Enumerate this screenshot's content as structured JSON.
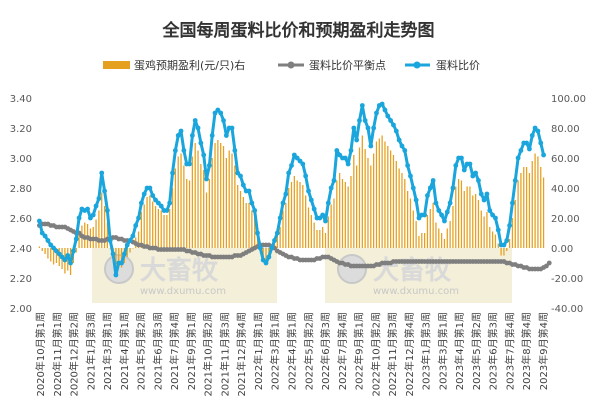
{
  "chart_data": {
    "type": "bar+line",
    "title": "全国每周蛋料比价和预期盈利走势图",
    "legend_position": "top",
    "colors": {
      "profit": "#E6A020",
      "breakeven": "#7F7F7F",
      "ratio": "#1AA5DC",
      "watermark": "#EFEACB"
    },
    "legend": {
      "profit": "蛋鸡预期盈利(元/只)右",
      "breakeven": "蛋料比价平衡点",
      "ratio": "蛋料比价"
    },
    "watermark": {
      "name": "大畜牧",
      "url": "www.dxumu.com"
    },
    "y_left": {
      "min": 2.0,
      "max": 3.4,
      "ticks": [
        "2.00",
        "2.20",
        "2.40",
        "2.60",
        "2.80",
        "3.00",
        "3.20",
        "3.40"
      ]
    },
    "y_right": {
      "min": -40,
      "max": 100,
      "ticks": [
        "-40.00",
        "-20.00",
        "0.00",
        "20.00",
        "40.00",
        "60.00",
        "80.00",
        "100.00"
      ]
    },
    "x_labels": [
      "2020年10月第1周",
      "2020年11月第1周",
      "2020年12月第2周",
      "2021年1月第3周",
      "2021年3月第1周",
      "2021年4月第1周",
      "2021年5月第2周",
      "2021年6月第3周",
      "2021年7月第4周",
      "2021年9月第1周",
      "2021年10月第2周",
      "2021年11月第3周",
      "2021年12月第4周",
      "2022年1月第1周",
      "2022年3月第1周",
      "2022年4月第1周",
      "2022年5月第2周",
      "2022年6月第3周",
      "2022年7月第4周",
      "2022年9月第1周",
      "2022年10月第2周",
      "2022年11月第3周",
      "2022年12月第4周",
      "2023年1月第3周",
      "2023年3月第1周",
      "2023年4月第1周",
      "2023年5月第2周",
      "2023年6月第3周",
      "2023年7月第4周",
      "2023年8月第4周",
      "2023年9月第4周"
    ],
    "ratio": [
      2.58,
      2.5,
      2.48,
      2.45,
      2.42,
      2.4,
      2.38,
      2.36,
      2.34,
      2.32,
      2.35,
      2.3,
      2.38,
      2.46,
      2.6,
      2.66,
      2.65,
      2.66,
      2.6,
      2.62,
      2.68,
      2.73,
      2.9,
      2.78,
      2.65,
      2.45,
      2.36,
      2.22,
      2.3,
      2.3,
      2.36,
      2.42,
      2.45,
      2.48,
      2.55,
      2.6,
      2.7,
      2.76,
      2.8,
      2.8,
      2.75,
      2.72,
      2.7,
      2.68,
      2.65,
      2.65,
      2.7,
      2.9,
      3.05,
      3.15,
      3.18,
      3.05,
      2.96,
      2.96,
      3.15,
      3.25,
      3.2,
      3.1,
      3.02,
      2.86,
      2.95,
      3.15,
      3.3,
      3.32,
      3.3,
      3.25,
      3.15,
      3.2,
      3.2,
      3.05,
      2.9,
      2.88,
      2.82,
      2.78,
      2.78,
      2.7,
      2.65,
      2.5,
      2.4,
      2.32,
      2.3,
      2.34,
      2.4,
      2.45,
      2.5,
      2.6,
      2.7,
      2.76,
      2.9,
      2.95,
      3.02,
      3.0,
      2.98,
      2.96,
      2.88,
      2.78,
      2.72,
      2.66,
      2.6,
      2.6,
      2.62,
      2.58,
      2.7,
      2.8,
      2.85,
      3.05,
      3.02,
      3.0,
      3.0,
      2.96,
      3.05,
      3.2,
      3.12,
      3.25,
      3.35,
      3.25,
      3.2,
      3.08,
      3.2,
      3.3,
      3.35,
      3.36,
      3.32,
      3.28,
      3.25,
      3.22,
      3.18,
      3.12,
      3.08,
      3.05,
      2.95,
      2.88,
      2.8,
      2.72,
      2.6,
      2.62,
      2.62,
      2.75,
      2.8,
      2.85,
      2.7,
      2.65,
      2.62,
      2.58,
      2.64,
      2.7,
      2.8,
      2.95,
      3.0,
      3.0,
      2.92,
      2.96,
      2.96,
      2.88,
      2.9,
      2.85,
      2.76,
      2.72,
      2.76,
      2.65,
      2.62,
      2.6,
      2.52,
      2.42,
      2.42,
      2.45,
      2.55,
      2.7,
      2.85,
      3.0,
      3.05,
      3.1,
      3.1,
      3.06,
      3.15,
      3.2,
      3.18,
      3.1,
      3.02
    ],
    "breakeven": [
      2.55,
      2.56,
      2.56,
      2.56,
      2.55,
      2.55,
      2.54,
      2.54,
      2.54,
      2.54,
      2.53,
      2.52,
      2.51,
      2.5,
      2.5,
      2.48,
      2.47,
      2.47,
      2.46,
      2.46,
      2.46,
      2.45,
      2.45,
      2.45,
      2.46,
      2.46,
      2.47,
      2.47,
      2.46,
      2.46,
      2.45,
      2.45,
      2.45,
      2.44,
      2.43,
      2.42,
      2.42,
      2.41,
      2.41,
      2.4,
      2.4,
      2.4,
      2.39,
      2.39,
      2.39,
      2.39,
      2.39,
      2.39,
      2.39,
      2.39,
      2.39,
      2.39,
      2.38,
      2.38,
      2.37,
      2.37,
      2.36,
      2.36,
      2.35,
      2.35,
      2.35,
      2.34,
      2.34,
      2.34,
      2.34,
      2.34,
      2.34,
      2.34,
      2.34,
      2.35,
      2.35,
      2.35,
      2.36,
      2.37,
      2.38,
      2.39,
      2.4,
      2.41,
      2.42,
      2.42,
      2.42,
      2.42,
      2.41,
      2.4,
      2.38,
      2.37,
      2.36,
      2.35,
      2.34,
      2.34,
      2.33,
      2.33,
      2.32,
      2.32,
      2.32,
      2.32,
      2.32,
      2.32,
      2.33,
      2.33,
      2.34,
      2.34,
      2.34,
      2.33,
      2.32,
      2.31,
      2.3,
      2.3,
      2.29,
      2.29,
      2.28,
      2.28,
      2.28,
      2.28,
      2.28,
      2.28,
      2.28,
      2.28,
      2.28,
      2.29,
      2.29,
      2.3,
      2.3,
      2.3,
      2.3,
      2.31,
      2.31,
      2.31,
      2.31,
      2.31,
      2.31,
      2.31,
      2.31,
      2.31,
      2.31,
      2.31,
      2.31,
      2.31,
      2.31,
      2.31,
      2.31,
      2.31,
      2.31,
      2.31,
      2.31,
      2.31,
      2.31,
      2.31,
      2.31,
      2.31,
      2.31,
      2.31,
      2.31,
      2.31,
      2.31,
      2.31,
      2.31,
      2.31,
      2.31,
      2.31,
      2.31,
      2.31,
      2.31,
      2.31,
      2.31,
      2.3,
      2.3,
      2.29,
      2.29,
      2.28,
      2.28,
      2.27,
      2.27,
      2.26,
      2.26,
      2.26,
      2.26,
      2.26,
      2.27,
      2.28,
      2.3
    ],
    "profit": [
      1,
      -2,
      -4,
      -7,
      -9,
      -11,
      -10,
      -12,
      -14,
      -17,
      -15,
      -18,
      -10,
      -3,
      10,
      15,
      17,
      16,
      13,
      14,
      19,
      25,
      37,
      28,
      17,
      0,
      -7,
      -19,
      -13,
      -13,
      -10,
      -6,
      -3,
      0,
      7,
      11,
      24,
      29,
      34,
      35,
      31,
      28,
      26,
      25,
      22,
      22,
      26,
      40,
      53,
      61,
      63,
      55,
      46,
      45,
      61,
      70,
      65,
      56,
      52,
      37,
      46,
      60,
      70,
      72,
      70,
      68,
      60,
      65,
      63,
      55,
      42,
      38,
      34,
      30,
      30,
      25,
      21,
      7,
      -1,
      -7,
      -10,
      -6,
      -1,
      3,
      8,
      14,
      25,
      30,
      40,
      44,
      48,
      45,
      44,
      42,
      35,
      27,
      22,
      17,
      12,
      12,
      14,
      10,
      21,
      29,
      33,
      45,
      50,
      46,
      44,
      41,
      48,
      62,
      55,
      67,
      75,
      66,
      60,
      55,
      63,
      71,
      73,
      75,
      71,
      68,
      65,
      62,
      58,
      53,
      50,
      46,
      38,
      33,
      25,
      18,
      8,
      10,
      10,
      22,
      26,
      30,
      17,
      13,
      10,
      6,
      13,
      18,
      28,
      41,
      46,
      45,
      38,
      41,
      41,
      35,
      36,
      32,
      25,
      21,
      24,
      14,
      11,
      9,
      3,
      -5,
      -5,
      -2,
      6,
      20,
      32,
      45,
      50,
      54,
      54,
      50,
      58,
      63,
      61,
      54,
      47
    ]
  }
}
